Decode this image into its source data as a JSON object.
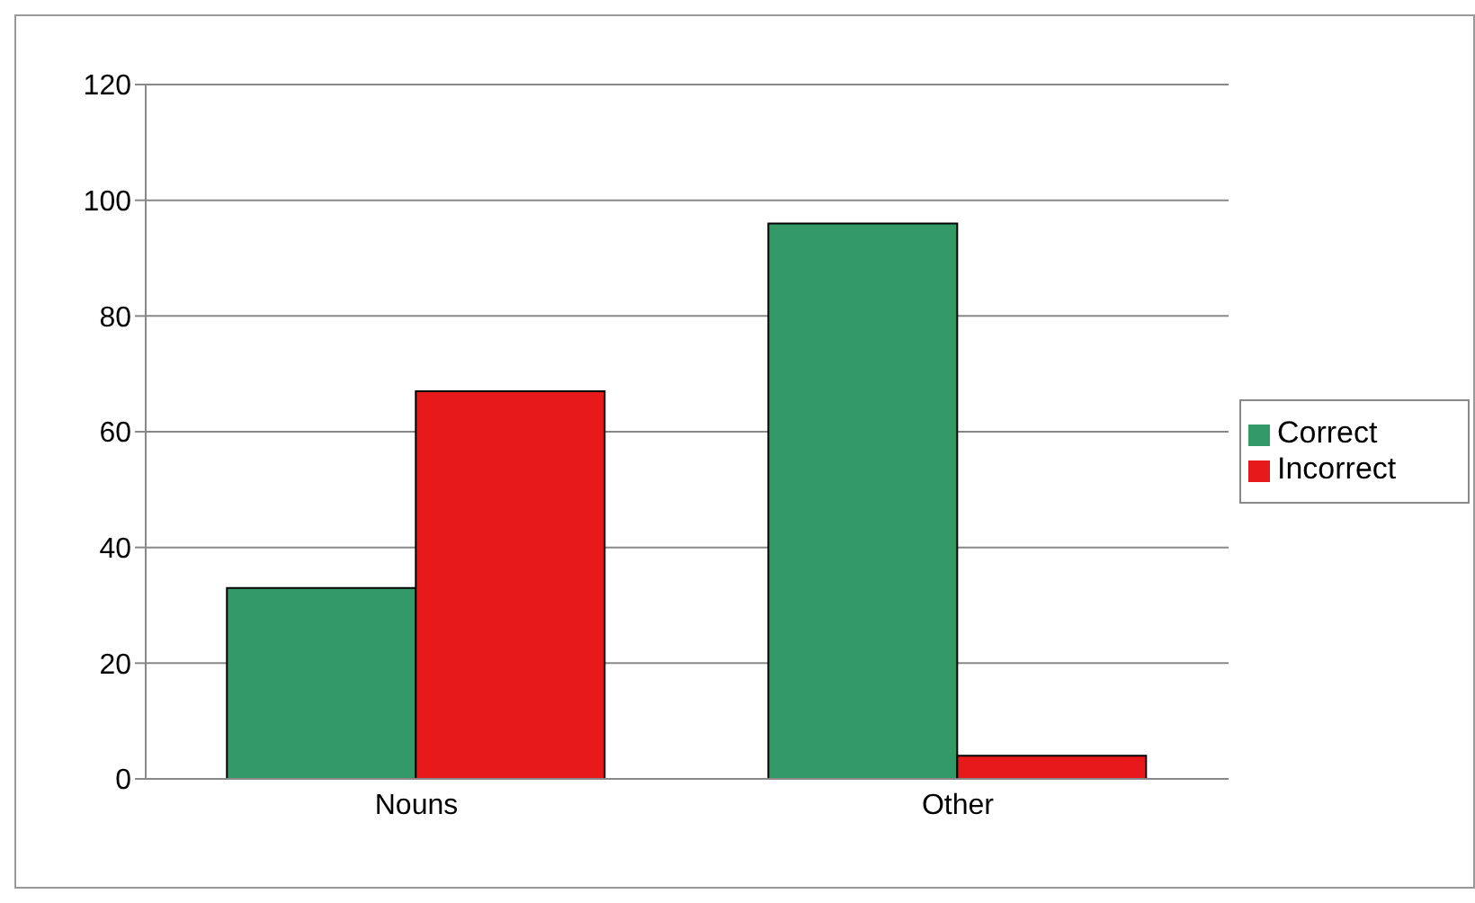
{
  "chart_data": {
    "type": "bar",
    "categories": [
      "Nouns",
      "Other"
    ],
    "series": [
      {
        "name": "Correct",
        "color": "#339966",
        "values": [
          33,
          96
        ]
      },
      {
        "name": "Incorrect",
        "color": "#e8191a",
        "values": [
          67,
          4
        ]
      }
    ],
    "ylim": [
      0,
      120
    ],
    "yticks": [
      0,
      20,
      40,
      60,
      80,
      100,
      120
    ],
    "grid": "y",
    "legend": "right"
  }
}
